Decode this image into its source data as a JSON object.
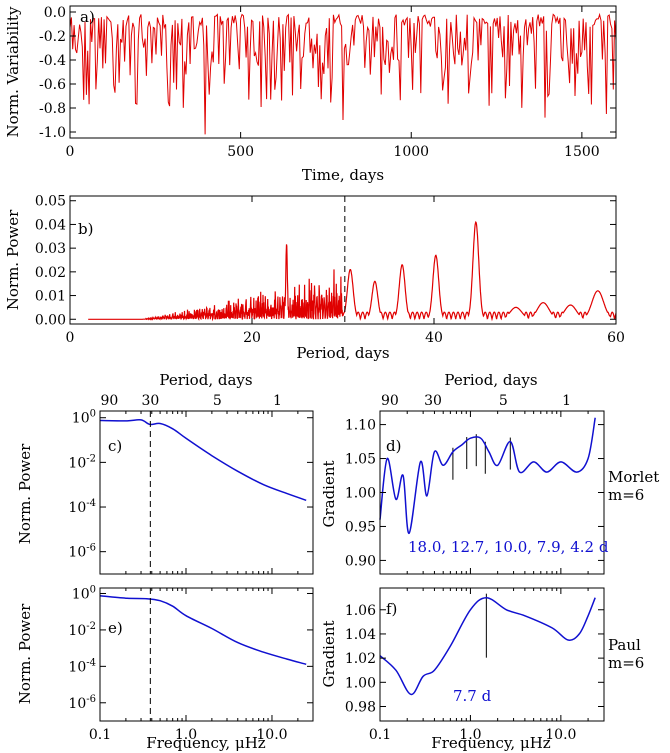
{
  "colors": {
    "red": "#e00000",
    "blue": "#1010d0",
    "black": "#000000"
  },
  "chart_data": [
    {
      "id": "a",
      "type": "line",
      "panel_label": "a)",
      "xlabel": "Time, days",
      "ylabel": "Norm. Variability",
      "xlim": [
        0,
        1600
      ],
      "ylim": [
        -1.05,
        0.05
      ],
      "xticks": [
        0,
        500,
        1000,
        1500
      ],
      "xtick_labels": [
        "0",
        "500",
        "1000",
        "1500"
      ],
      "yticks": [
        0,
        -0.2,
        -0.4,
        -0.6,
        -0.8,
        -1.0
      ],
      "ytick_labels": [
        "0.0",
        "-0.2",
        "-0.4",
        "-0.6",
        "-0.8",
        "-1.0"
      ],
      "series": [
        {
          "color": "#e00000",
          "description": "normalized variability time series, values mostly between 0 and -0.5 with dips to -1.0"
        }
      ],
      "notable_points": [
        [
          395,
          -1.02
        ],
        [
          800,
          -0.9
        ],
        [
          1390,
          -0.88
        ],
        [
          1570,
          -0.85
        ]
      ]
    },
    {
      "id": "b",
      "type": "line",
      "panel_label": "b)",
      "xlabel": "Period, days",
      "ylabel": "Norm. Power",
      "xlim": [
        0,
        60
      ],
      "ylim": [
        -0.002,
        0.052
      ],
      "xticks": [
        0,
        20,
        40,
        60
      ],
      "xtick_labels": [
        "0",
        "20",
        "40",
        "60"
      ],
      "yticks": [
        0,
        0.01,
        0.02,
        0.03,
        0.04,
        0.05
      ],
      "ytick_labels": [
        "0.00",
        "0.01",
        "0.02",
        "0.03",
        "0.04",
        "0.05"
      ],
      "vline": 30.2,
      "peaks": [
        [
          23.8,
          0.032
        ],
        [
          30.8,
          0.021
        ],
        [
          33.5,
          0.016
        ],
        [
          36.5,
          0.023
        ],
        [
          40.2,
          0.027
        ],
        [
          44.6,
          0.041
        ],
        [
          49,
          0.005
        ],
        [
          52,
          0.007
        ],
        [
          55,
          0.006
        ],
        [
          58,
          0.012
        ]
      ]
    },
    {
      "id": "c",
      "type": "line",
      "panel_label": "c)",
      "xlabel": "",
      "ylabel": "Norm. Power",
      "xscale": "log",
      "yscale": "log",
      "xlim": [
        0.1,
        30
      ],
      "ylim": [
        1e-07,
        2
      ],
      "yticks": [
        1,
        0.01,
        0.0001,
        1e-06
      ],
      "ytick_labels": [
        "10^0",
        "10^-2",
        "10^-4",
        "10^-6"
      ],
      "top_axis": {
        "label": "Period, days",
        "ticks": [
          90,
          30,
          5,
          1
        ],
        "tick_labels": [
          "90",
          "30",
          "5",
          "1"
        ]
      },
      "vline": 0.385,
      "points": [
        [
          0.1,
          0.75
        ],
        [
          0.2,
          0.72
        ],
        [
          0.3,
          0.8
        ],
        [
          0.38,
          0.5
        ],
        [
          0.5,
          0.55
        ],
        [
          0.7,
          0.32
        ],
        [
          1,
          0.12
        ],
        [
          2,
          0.02
        ],
        [
          4,
          0.004
        ],
        [
          8,
          0.001
        ],
        [
          15,
          0.0004
        ],
        [
          25,
          0.0002
        ]
      ]
    },
    {
      "id": "d",
      "type": "line",
      "panel_label": "d)",
      "xlabel": "",
      "ylabel": "Gradient",
      "xscale": "log",
      "xlim": [
        0.1,
        30
      ],
      "ylim": [
        0.88,
        1.12
      ],
      "yticks": [
        0.9,
        0.95,
        1.0,
        1.05,
        1.1
      ],
      "ytick_labels": [
        "0.90",
        "0.95",
        "1.00",
        "1.05",
        "1.10"
      ],
      "top_axis": {
        "label": "Period, days",
        "ticks": [
          90,
          30,
          5,
          1
        ],
        "tick_labels": [
          "90",
          "30",
          "5",
          "1"
        ]
      },
      "side_label_1": "Morlet",
      "side_label_2": "m=6",
      "annotation": "18.0,  12.7,  10.0,   7.9,   4.2 d",
      "marked_frequencies": [
        0.64,
        0.91,
        1.16,
        1.46,
        2.76
      ],
      "points": [
        [
          0.1,
          0.96
        ],
        [
          0.12,
          1.05
        ],
        [
          0.15,
          0.99
        ],
        [
          0.18,
          1.025
        ],
        [
          0.21,
          0.94
        ],
        [
          0.28,
          1.045
        ],
        [
          0.33,
          0.995
        ],
        [
          0.4,
          1.06
        ],
        [
          0.5,
          1.04
        ],
        [
          0.64,
          1.06
        ],
        [
          0.8,
          1.07
        ],
        [
          1.0,
          1.08
        ],
        [
          1.3,
          1.08
        ],
        [
          1.6,
          1.06
        ],
        [
          2.0,
          1.04
        ],
        [
          2.76,
          1.075
        ],
        [
          3.5,
          1.03
        ],
        [
          5,
          1.045
        ],
        [
          7,
          1.03
        ],
        [
          10,
          1.045
        ],
        [
          15,
          1.03
        ],
        [
          20,
          1.05
        ],
        [
          24,
          1.11
        ]
      ]
    },
    {
      "id": "e",
      "type": "line",
      "panel_label": "e)",
      "xlabel": "Frequency, μHz",
      "ylabel": "Norm. Power",
      "xscale": "log",
      "yscale": "log",
      "xlim": [
        0.1,
        30
      ],
      "ylim": [
        1e-07,
        2
      ],
      "xticks": [
        0.1,
        1.0,
        10.0
      ],
      "xtick_labels": [
        "0.1",
        "1.0",
        "10.0"
      ],
      "yticks": [
        1,
        0.01,
        0.0001,
        1e-06
      ],
      "ytick_labels": [
        "10^0",
        "10^-2",
        "10^-4",
        "10^-6"
      ],
      "vline": 0.385,
      "points": [
        [
          0.1,
          0.75
        ],
        [
          0.2,
          0.55
        ],
        [
          0.35,
          0.52
        ],
        [
          0.5,
          0.4
        ],
        [
          0.7,
          0.2
        ],
        [
          1,
          0.06
        ],
        [
          2,
          0.012
        ],
        [
          4,
          0.002
        ],
        [
          8,
          0.0006
        ],
        [
          15,
          0.00025
        ],
        [
          25,
          0.00013
        ]
      ]
    },
    {
      "id": "f",
      "type": "line",
      "panel_label": "f)",
      "xlabel": "Frequency, μHz",
      "ylabel": "Gradient",
      "xscale": "log",
      "xlim": [
        0.1,
        30
      ],
      "ylim": [
        0.968,
        1.078
      ],
      "xticks": [
        0.1,
        1.0,
        10.0
      ],
      "xtick_labels": [
        "0.1",
        "1.0",
        "10.0"
      ],
      "yticks": [
        0.98,
        1.0,
        1.02,
        1.04,
        1.06
      ],
      "ytick_labels": [
        "0.98",
        "1.00",
        "1.02",
        "1.04",
        "1.06"
      ],
      "side_label_1": "Paul",
      "side_label_2": "m=6",
      "annotation": "7.7 d",
      "marked_frequencies": [
        1.5
      ],
      "points": [
        [
          0.1,
          1.022
        ],
        [
          0.15,
          1.01
        ],
        [
          0.22,
          0.99
        ],
        [
          0.3,
          1.005
        ],
        [
          0.4,
          1.01
        ],
        [
          0.6,
          1.03
        ],
        [
          1.0,
          1.06
        ],
        [
          1.5,
          1.07
        ],
        [
          2.5,
          1.06
        ],
        [
          4,
          1.055
        ],
        [
          8,
          1.045
        ],
        [
          12,
          1.035
        ],
        [
          16,
          1.04
        ],
        [
          20,
          1.055
        ],
        [
          24,
          1.07
        ]
      ]
    }
  ]
}
